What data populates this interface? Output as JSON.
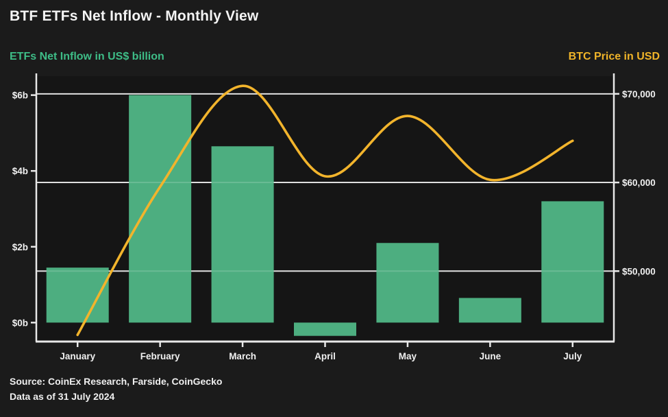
{
  "title": "BTF ETFs Net Inflow - Monthly View",
  "footer": {
    "source": "Source: CoinEx Research, Farside, CoinGecko",
    "as_of": "Data as of 31 July 2024"
  },
  "colors": {
    "background": "#1b1b1b",
    "plot_background": "#151515",
    "bar": "#4dae80",
    "line": "#f2b42c",
    "left_axis_title": "#3ebd87",
    "right_axis_title": "#f0b429",
    "axis": "#e8e8e8",
    "grid": "#d9d9d9",
    "text": "#f0f0f0"
  },
  "chart_data": {
    "type": "bar+line combo",
    "title": "BTF ETFs Net Inflow - Monthly View",
    "categories": [
      "January",
      "February",
      "March",
      "April",
      "May",
      "June",
      "July"
    ],
    "series": [
      {
        "name": "ETFs Net Inflow",
        "type": "bar",
        "axis": "left",
        "unit": "US$ billion",
        "values": [
          1.45,
          6.0,
          4.65,
          -0.35,
          2.1,
          0.65,
          3.2
        ]
      },
      {
        "name": "BTC Price",
        "type": "line",
        "axis": "right",
        "unit": "USD",
        "values": [
          42800,
          59500,
          70900,
          60700,
          67500,
          60300,
          64700
        ]
      }
    ],
    "left_axis": {
      "label": "ETFs Net Inflow in US$ billion",
      "ticks": [
        "$0b",
        "$2b",
        "$4b",
        "$6b"
      ],
      "tick_values": [
        0,
        2,
        4,
        6
      ],
      "range": [
        -0.5,
        6.5
      ]
    },
    "right_axis": {
      "label": "BTC Price in USD",
      "ticks": [
        "$50,000",
        "$60,000",
        "$70,000"
      ],
      "tick_values": [
        50000,
        60000,
        70000
      ],
      "range": [
        42050,
        72000
      ]
    },
    "grid": "horizontal gridlines at right-axis tick values",
    "legend": "none (colored axis titles act as legend)"
  }
}
